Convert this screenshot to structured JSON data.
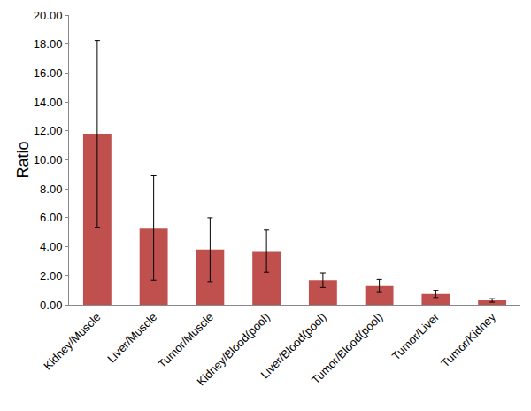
{
  "chart_data": {
    "type": "bar",
    "y_label": "Ratio",
    "categories": [
      "Kidney/Muscle",
      "Liver/Muscle",
      "Tumor/Muscle",
      "Kidney/Blood(pool)",
      "Liver/Blood(pool)",
      "Tumor/Blood(pool)",
      "Tumor/Liver",
      "Tumor/Kidney"
    ],
    "values": [
      11.8,
      5.3,
      3.8,
      3.7,
      1.7,
      1.3,
      0.75,
      0.3
    ],
    "error": [
      6.45,
      3.6,
      2.2,
      1.45,
      0.5,
      0.45,
      0.25,
      0.12
    ],
    "color": "#c0504d",
    "ylim": [
      0,
      20
    ],
    "yticks": [
      {
        "value": 0,
        "label": "0.00"
      },
      {
        "value": 2,
        "label": "2.00"
      },
      {
        "value": 4,
        "label": "4.00"
      },
      {
        "value": 6,
        "label": "6.00"
      },
      {
        "value": 8,
        "label": "8.00"
      },
      {
        "value": 10,
        "label": "10.00"
      },
      {
        "value": 12,
        "label": "12.00"
      },
      {
        "value": 14,
        "label": "14.00"
      },
      {
        "value": 16,
        "label": "16.00"
      },
      {
        "value": 18,
        "label": "18.00"
      },
      {
        "value": 20,
        "label": "20.00"
      }
    ],
    "grid": false
  }
}
